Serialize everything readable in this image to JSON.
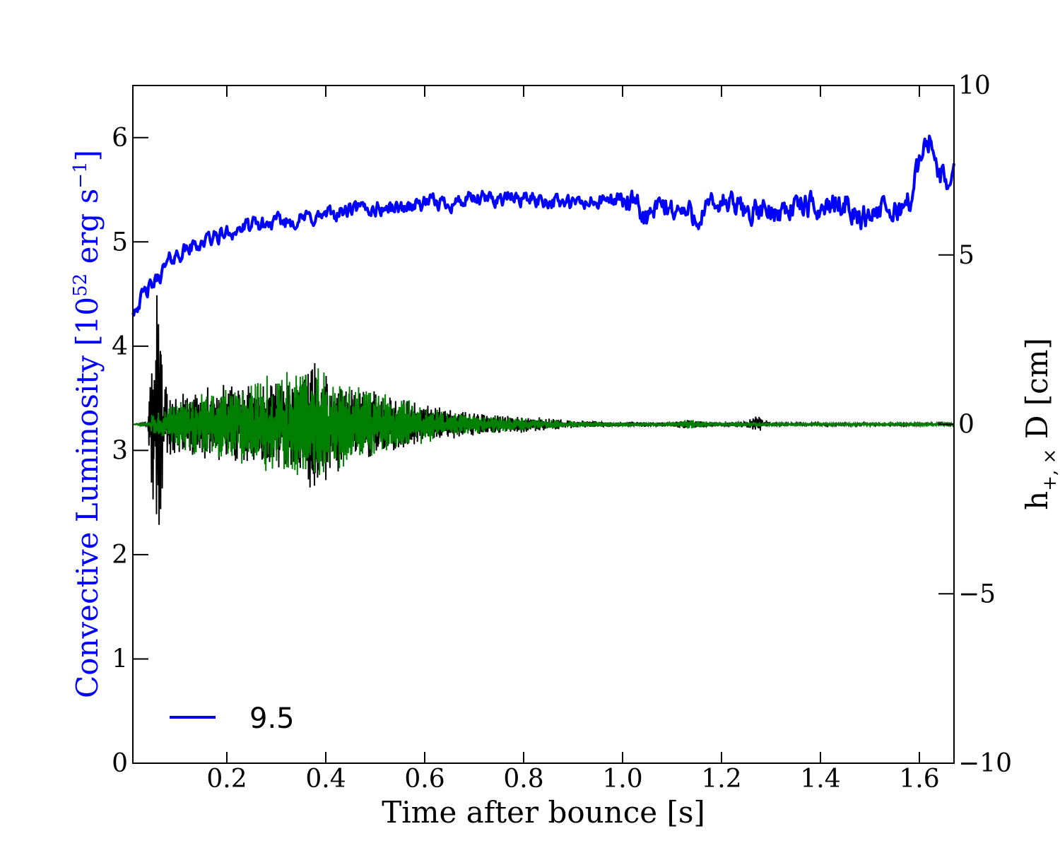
{
  "chart_data": {
    "type": "line",
    "xlabel": "Time after bounce [s]",
    "xlim": [
      0.01,
      1.67
    ],
    "xticks": [
      0.2,
      0.4,
      0.6,
      0.8,
      1.0,
      1.2,
      1.4,
      1.6
    ],
    "xtick_labels": [
      "0.2",
      "0.4",
      "0.6",
      "0.8",
      "1.0",
      "1.2",
      "1.4",
      "1.6"
    ],
    "left_axis": {
      "label_main": "Convective Luminosity [10",
      "label_exp": "52",
      "label_mid": " erg s",
      "label_exp2": "−1",
      "label_end": "]",
      "color": "#0000ff",
      "ylim": [
        0,
        6.5
      ],
      "ticks": [
        0,
        1,
        2,
        3,
        4,
        5,
        6
      ],
      "tick_labels": [
        "0",
        "1",
        "2",
        "3",
        "4",
        "5",
        "6"
      ]
    },
    "right_axis": {
      "label_main": "h",
      "label_sub": "+, ×",
      "label_end": " D [cm]",
      "color": "#000000",
      "ylim": [
        -10,
        10
      ],
      "ticks": [
        -10,
        -5,
        0,
        5,
        10
      ],
      "tick_labels": [
        "−10",
        "−5",
        "0",
        "5",
        "10"
      ]
    },
    "series": [
      {
        "name": "9.5",
        "axis": "left",
        "color": "#0000ff",
        "x": [
          0.01,
          0.03,
          0.05,
          0.07,
          0.09,
          0.12,
          0.15,
          0.18,
          0.21,
          0.25,
          0.3,
          0.35,
          0.4,
          0.45,
          0.5,
          0.55,
          0.6,
          0.65,
          0.7,
          0.75,
          0.8,
          0.85,
          0.9,
          0.95,
          1.0,
          1.03,
          1.05,
          1.08,
          1.1,
          1.15,
          1.2,
          1.25,
          1.3,
          1.35,
          1.4,
          1.45,
          1.48,
          1.5,
          1.55,
          1.58,
          1.6,
          1.62,
          1.64,
          1.66,
          1.67
        ],
        "y": [
          4.35,
          4.48,
          4.58,
          4.72,
          4.85,
          4.93,
          5.0,
          5.05,
          5.1,
          5.15,
          5.18,
          5.22,
          5.25,
          5.3,
          5.32,
          5.33,
          5.37,
          5.38,
          5.4,
          5.42,
          5.42,
          5.4,
          5.36,
          5.38,
          5.42,
          5.3,
          5.22,
          5.35,
          5.32,
          5.25,
          5.38,
          5.3,
          5.28,
          5.35,
          5.32,
          5.4,
          5.2,
          5.3,
          5.28,
          5.4,
          5.75,
          6.0,
          5.65,
          5.55,
          5.75
        ],
        "noise_amplitude": 0.06
      },
      {
        "name": "",
        "axis": "right",
        "color": "#000000",
        "envelope": {
          "t": [
            0.01,
            0.04,
            0.05,
            0.06,
            0.07,
            0.08,
            0.1,
            0.15,
            0.2,
            0.25,
            0.3,
            0.35,
            0.38,
            0.4,
            0.45,
            0.5,
            0.55,
            0.6,
            0.65,
            0.7,
            0.75,
            0.8,
            0.85,
            0.9,
            1.0,
            1.1,
            1.13,
            1.15,
            1.2,
            1.25,
            1.27,
            1.3,
            1.4,
            1.5,
            1.67
          ],
          "amp": [
            0.0,
            0.05,
            2.5,
            4.5,
            2.2,
            1.3,
            0.9,
            1.1,
            1.2,
            1.2,
            1.3,
            1.5,
            2.4,
            1.7,
            1.2,
            1.0,
            0.8,
            0.6,
            0.45,
            0.35,
            0.28,
            0.25,
            0.18,
            0.12,
            0.08,
            0.07,
            0.15,
            0.1,
            0.06,
            0.12,
            0.28,
            0.05,
            0.04,
            0.03,
            0.03
          ]
        },
        "frequency_hz": 300
      },
      {
        "name": "",
        "axis": "right",
        "color": "#008000",
        "envelope": {
          "t": [
            0.01,
            0.04,
            0.05,
            0.08,
            0.1,
            0.15,
            0.2,
            0.25,
            0.3,
            0.35,
            0.38,
            0.4,
            0.45,
            0.5,
            0.55,
            0.6,
            0.65,
            0.7,
            0.75,
            0.8,
            0.85,
            0.9,
            1.0,
            1.1,
            1.13,
            1.2,
            1.27,
            1.3,
            1.4,
            1.5,
            1.67
          ],
          "amp": [
            0.0,
            0.05,
            0.4,
            0.5,
            0.7,
            1.0,
            1.1,
            1.3,
            1.6,
            1.5,
            1.9,
            1.5,
            1.2,
            1.0,
            0.8,
            0.6,
            0.4,
            0.3,
            0.25,
            0.2,
            0.15,
            0.1,
            0.06,
            0.06,
            0.15,
            0.05,
            0.08,
            0.04,
            0.03,
            0.03,
            0.03
          ]
        },
        "frequency_hz": 320
      }
    ],
    "legend": {
      "placement": "lower-left",
      "entries": [
        "9.5"
      ]
    }
  }
}
